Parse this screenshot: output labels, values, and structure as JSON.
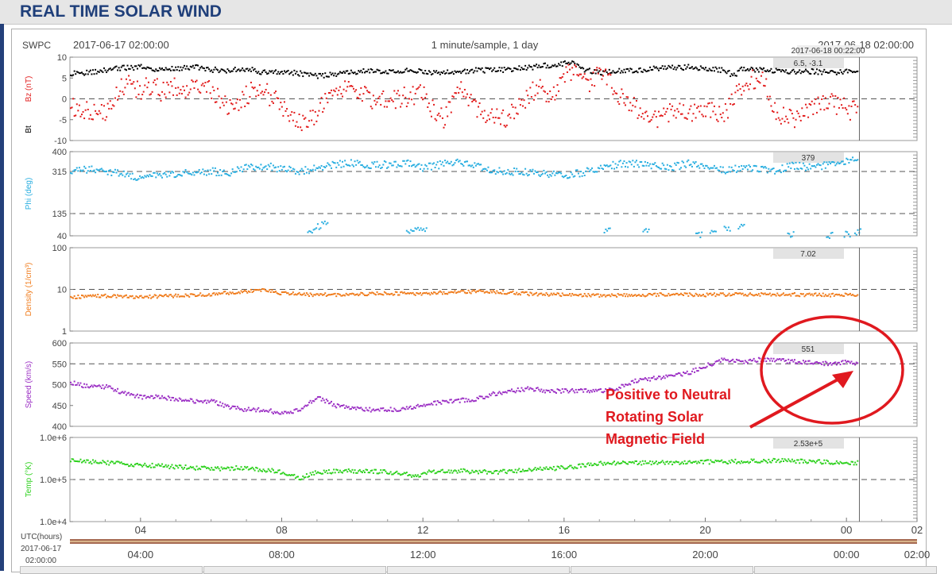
{
  "header": {
    "title": "REAL TIME SOLAR WIND"
  },
  "colors": {
    "bt": "#000000",
    "bz": "#e21b1b",
    "phi": "#29aee0",
    "density": "#f07c1c",
    "speed": "#9b2fc4",
    "temp": "#2ed11e",
    "annotation": "#e0191f",
    "title_blue": "#1f3f7a"
  },
  "plot_header": {
    "source": "SWPC",
    "start": "2017-06-17 02:00:00",
    "sampling": "1 minute/sample, 1 day",
    "end": "2017-06-18 02:00:00",
    "cursor_time": "2017-06-18 00:22:00"
  },
  "annotation": {
    "lines": [
      "Positive to Neutral",
      "Rotating Solar",
      "Magnetic Field"
    ]
  },
  "chart_data": [
    {
      "type": "scatter",
      "id": "mag",
      "ylabel": [
        "Bz (nT)",
        "Bt"
      ],
      "ylim": [
        -10,
        10
      ],
      "yticks": [
        "10",
        "5",
        "0",
        "-5",
        "-10"
      ],
      "dashed_at": [
        0
      ],
      "readout": "6.5, -3.1",
      "series": [
        {
          "name": "Bt",
          "color": "#000000",
          "x": [
            2,
            2.5,
            3,
            3.5,
            4,
            4.5,
            5,
            5.5,
            6,
            6.5,
            7,
            7.5,
            8,
            8.5,
            9,
            9.5,
            10,
            10.5,
            11,
            11.5,
            12,
            12.5,
            13,
            13.5,
            14,
            14.5,
            15,
            15.5,
            16,
            16.2,
            16.5,
            17,
            17.5,
            18,
            18.5,
            19,
            19.5,
            20,
            20.5,
            20.8,
            21,
            21.5,
            22,
            22.5,
            23,
            23.5,
            24,
            24.33
          ],
          "y": [
            6,
            6.3,
            6.9,
            7.4,
            7.6,
            7.1,
            7.3,
            7.6,
            7,
            6.8,
            7.2,
            6.3,
            6.4,
            6.1,
            5.5,
            6,
            6.3,
            6.8,
            6.5,
            6.8,
            6.6,
            6.2,
            6.4,
            6.9,
            6.8,
            7.2,
            7.5,
            8,
            8.5,
            8.8,
            7,
            6.3,
            6.6,
            6.8,
            7.2,
            7.4,
            7.6,
            7.3,
            6.9,
            5.5,
            7.2,
            6.9,
            6.8,
            6.5,
            6.6,
            6.3,
            6.5,
            6.5
          ]
        },
        {
          "name": "Bz",
          "color": "#e21b1b",
          "x": [
            2,
            2.5,
            3,
            3.3,
            3.6,
            4,
            4.3,
            4.6,
            5,
            5.5,
            6,
            6.3,
            6.6,
            7,
            7.3,
            7.6,
            8,
            8.3,
            8.6,
            8.9,
            9.2,
            9.5,
            10,
            10.5,
            11,
            11.5,
            12,
            12.3,
            12.6,
            13,
            13.5,
            14,
            14.3,
            14.6,
            15,
            15.3,
            15.6,
            16,
            16.3,
            16.6,
            17,
            17.3,
            17.6,
            18,
            18.5,
            19,
            19.5,
            20,
            20.3,
            20.6,
            21,
            21.3,
            21.6,
            22,
            22.5,
            23,
            23.5,
            24,
            24.33
          ],
          "y": [
            -1.5,
            -3,
            -3.5,
            1.5,
            3.5,
            2,
            3.5,
            1.5,
            3,
            2.5,
            2,
            -1,
            -2,
            1,
            3,
            1,
            -2,
            -5,
            -5.5,
            -4.5,
            -0.5,
            2.5,
            1.5,
            0,
            -0.5,
            0.5,
            1,
            -3,
            -5,
            3,
            -2,
            -4.5,
            -5,
            -2,
            1,
            3,
            0.5,
            5,
            7.5,
            3,
            6,
            4,
            0,
            -2,
            -5,
            -3,
            -3.5,
            -2.5,
            -4,
            -3,
            3,
            4.5,
            5.5,
            -3.5,
            -5,
            -1.5,
            -0.5,
            -2.5,
            -3.1
          ]
        }
      ]
    },
    {
      "type": "scatter",
      "id": "phi",
      "ylabel": [
        "Phi (deg)"
      ],
      "ylim": [
        40,
        400
      ],
      "yticks": [
        "400",
        "315",
        "135",
        "40"
      ],
      "dashed_at": [
        315,
        135
      ],
      "readout": "379",
      "series": [
        {
          "name": "Phi",
          "color": "#29aee0",
          "x": [
            2,
            2.5,
            3,
            3.5,
            4,
            4.5,
            5,
            5.5,
            6,
            6.5,
            7,
            7.5,
            8,
            8.5,
            9,
            9.5,
            10,
            10.5,
            11,
            11.5,
            12,
            12.5,
            13,
            13.5,
            14,
            14.5,
            15,
            15.5,
            16,
            16.5,
            17,
            17.5,
            18,
            18.5,
            19,
            19.5,
            20,
            20.5,
            21,
            21.5,
            22,
            22.5,
            23,
            23.5,
            24,
            24.33
          ],
          "y": [
            310,
            325,
            315,
            300,
            290,
            300,
            305,
            310,
            315,
            310,
            330,
            340,
            325,
            315,
            330,
            345,
            350,
            340,
            345,
            350,
            330,
            345,
            355,
            340,
            320,
            315,
            310,
            305,
            300,
            310,
            330,
            345,
            350,
            340,
            330,
            350,
            340,
            320,
            330,
            325,
            320,
            340,
            330,
            345,
            360,
            379
          ]
        },
        {
          "name": "Phi-low",
          "color": "#29aee0",
          "x": [
            8.8,
            9.0,
            9.2,
            11.6,
            11.8,
            12.0,
            17.2,
            18.3,
            19.8,
            20.2,
            20.6,
            21.0,
            22.4,
            23.5,
            24.0,
            24.3
          ],
          "y": [
            60,
            85,
            100,
            55,
            70,
            75,
            65,
            70,
            45,
            58,
            70,
            80,
            50,
            45,
            50,
            60
          ]
        }
      ]
    },
    {
      "type": "scatter",
      "id": "density",
      "ylabel": [
        "Density (1/cm³)"
      ],
      "ylim": [
        1,
        100
      ],
      "log": true,
      "yticks": [
        "100",
        "10",
        "1"
      ],
      "dashed_at": [
        10
      ],
      "readout": "7.02",
      "series": [
        {
          "name": "Density",
          "color": "#f07c1c",
          "x": [
            2,
            3,
            4,
            5,
            6,
            7,
            7.5,
            8,
            9,
            10,
            11,
            12,
            13,
            14,
            15,
            16,
            17,
            18,
            19,
            20,
            21,
            22,
            23,
            24,
            24.33
          ],
          "y": [
            6.5,
            7,
            6.6,
            7,
            7.6,
            9,
            9.6,
            8,
            7.4,
            7.6,
            8,
            7.8,
            8.8,
            8.8,
            7.8,
            7.4,
            7.2,
            7.3,
            7.6,
            7.4,
            7.6,
            7.6,
            7.4,
            7.3,
            7.02
          ]
        }
      ]
    },
    {
      "type": "scatter",
      "id": "speed",
      "ylabel": [
        "Speed (km/s)"
      ],
      "ylim": [
        400,
        600
      ],
      "yticks": [
        "600",
        "550",
        "500",
        "450",
        "400"
      ],
      "dashed_at": [
        550
      ],
      "readout": "551",
      "series": [
        {
          "name": "Speed",
          "color": "#9b2fc4",
          "x": [
            2,
            2.5,
            3,
            3.5,
            4,
            4.5,
            5,
            5.5,
            6,
            6.5,
            7,
            7.5,
            8,
            8.5,
            9,
            9.5,
            10,
            10.5,
            11,
            11.5,
            12,
            12.5,
            13,
            13.5,
            14,
            14.5,
            15,
            15.5,
            16,
            16.5,
            17,
            17.5,
            18,
            18.5,
            19,
            19.5,
            20,
            20.5,
            21,
            21.5,
            22,
            22.5,
            23,
            23.5,
            24,
            24.33
          ],
          "y": [
            505,
            495,
            495,
            480,
            470,
            470,
            465,
            460,
            460,
            445,
            440,
            440,
            430,
            440,
            470,
            450,
            445,
            440,
            440,
            442,
            450,
            458,
            462,
            465,
            478,
            485,
            490,
            485,
            485,
            485,
            485,
            492,
            510,
            515,
            520,
            528,
            545,
            560,
            555,
            560,
            558,
            555,
            552,
            550,
            555,
            551
          ]
        }
      ]
    },
    {
      "type": "scatter",
      "id": "temp",
      "ylabel": [
        "Temp (°K)"
      ],
      "ylim": [
        10000,
        1000000
      ],
      "log": true,
      "yticks": [
        "1.0e+6",
        "1.0e+5",
        "1.0e+4"
      ],
      "dashed_at": [
        100000
      ],
      "readout": "2.53e+5",
      "series": [
        {
          "name": "Temp",
          "color": "#2ed11e",
          "x": [
            2,
            3,
            4,
            5,
            6,
            7,
            8,
            8.5,
            9,
            10,
            11,
            11.5,
            11.9,
            12,
            13,
            14,
            15,
            16,
            17,
            18,
            19,
            20,
            21,
            22,
            23,
            24,
            24.33
          ],
          "y": [
            280000,
            250000,
            220000,
            200000,
            180000,
            190000,
            150000,
            110000,
            150000,
            160000,
            150000,
            140000,
            110000,
            150000,
            160000,
            150000,
            170000,
            190000,
            240000,
            250000,
            250000,
            260000,
            270000,
            280000,
            270000,
            250000,
            253000
          ]
        }
      ]
    }
  ],
  "axes": {
    "x_range": [
      2,
      26
    ],
    "cursor_x": 24.367,
    "inner_ticks": [
      "04",
      "08",
      "12",
      "16",
      "20",
      "00",
      "02"
    ],
    "inner_tick_x": [
      4,
      8,
      12,
      16,
      20,
      24,
      26
    ],
    "utc_label": "UTC(hours)",
    "utc_start_date": "2017-06-17",
    "utc_start_time": "02:00:00",
    "outer_ticks": [
      "04:00",
      "08:00",
      "12:00",
      "16:00",
      "20:00",
      "00:00",
      "02:00"
    ]
  }
}
